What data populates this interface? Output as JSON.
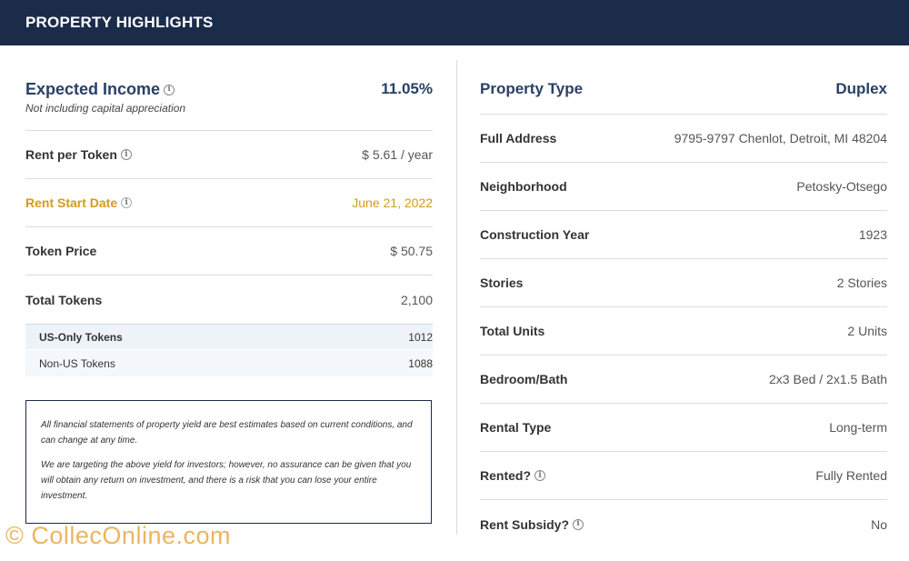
{
  "header": {
    "title": "PROPERTY HIGHLIGHTS"
  },
  "left": {
    "expected_income": {
      "label": "Expected Income",
      "subtitle": "Not including capital appreciation",
      "value": "11.05%"
    },
    "rows": [
      {
        "label": "Rent per Token",
        "value": "$ 5.61 / year",
        "info": true
      },
      {
        "label": "Rent Start Date",
        "value": "June 21, 2022",
        "info": true
      },
      {
        "label": "Token Price",
        "value": "$ 50.75",
        "info": false
      },
      {
        "label": "Total Tokens",
        "value": "2,100",
        "info": false
      }
    ],
    "token_breakdown": [
      {
        "label": "US-Only Tokens",
        "value": "1012"
      },
      {
        "label": "Non-US Tokens",
        "value": "1088"
      }
    ],
    "disclaimer": [
      "All financial statements of property yield are best estimates based on current conditions, and can change at any time.",
      "We are targeting the above yield for investors; however, no assurance can be given that you will obtain any return on investment, and there is a risk that you can lose your entire investment."
    ]
  },
  "right": {
    "property_type": {
      "label": "Property Type",
      "value": "Duplex"
    },
    "rows": [
      {
        "label": "Full Address",
        "value": "9795-9797 Chenlot, Detroit, MI 48204"
      },
      {
        "label": "Neighborhood",
        "value": "Petosky-Otsego"
      },
      {
        "label": "Construction Year",
        "value": "1923"
      },
      {
        "label": "Stories",
        "value": "2 Stories"
      },
      {
        "label": "Total Units",
        "value": "2 Units"
      },
      {
        "label": "Bedroom/Bath",
        "value": "2x3 Bed / 2x1.5 Bath"
      },
      {
        "label": "Rental Type",
        "value": "Long-term"
      },
      {
        "label": "Rented?",
        "value": "Fully Rented"
      },
      {
        "label": "Rent Subsidy?",
        "value": "No"
      }
    ]
  },
  "icons": {
    "info": "info-circle-icon"
  },
  "colors": {
    "header_bg": "#1b2c4b",
    "accent_blue": "#2a4066",
    "gold": "#d19c19"
  },
  "watermark": "© CollecOnline.com"
}
